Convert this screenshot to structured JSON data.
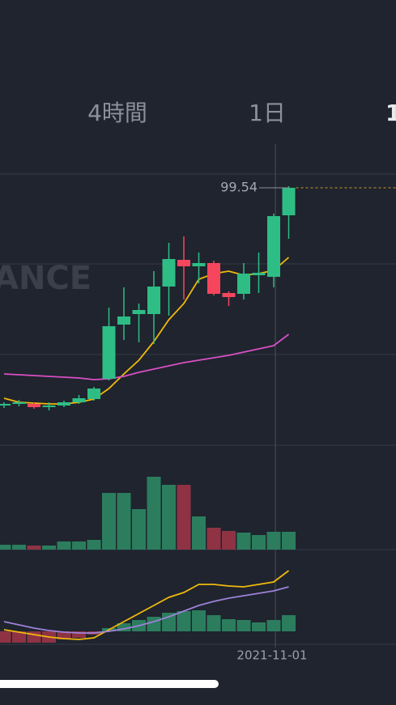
{
  "tabs": [
    "4時間",
    "1日",
    "1"
  ],
  "watermark": "ANCE",
  "chart_data": [
    {
      "type": "candlestick",
      "categories": [
        null,
        null,
        null,
        null,
        null,
        null,
        null,
        null,
        null,
        null,
        null,
        null,
        null,
        null,
        null,
        null,
        null,
        null,
        "2021-11-01",
        null
      ],
      "open": [
        72.64,
        72.84,
        72.84,
        72.44,
        72.64,
        73.04,
        73.44,
        75.94,
        82.64,
        83.94,
        83.94,
        87.34,
        90.64,
        89.84,
        90.24,
        86.54,
        86.44,
        88.74,
        88.54,
        96.14
      ],
      "high": [
        73.04,
        73.34,
        73.04,
        73.04,
        73.24,
        73.94,
        74.94,
        84.74,
        87.24,
        85.24,
        89.24,
        92.74,
        93.54,
        91.54,
        90.54,
        86.74,
        90.24,
        91.54,
        96.34,
        99.74
      ],
      "low": [
        72.34,
        72.54,
        72.24,
        72.04,
        72.44,
        72.84,
        73.24,
        75.74,
        80.74,
        80.44,
        80.24,
        83.74,
        85.74,
        87.74,
        86.24,
        84.94,
        85.74,
        86.54,
        87.24,
        93.24
      ],
      "close": [
        72.84,
        73.04,
        72.44,
        72.64,
        73.04,
        73.54,
        74.74,
        82.44,
        83.64,
        84.44,
        87.34,
        90.74,
        89.84,
        90.24,
        86.44,
        86.04,
        88.94,
        89.04,
        96.04,
        99.54
      ],
      "up_color": "#2ebd85",
      "down_color": "#f6465d",
      "series": [
        {
          "color": "#f0b90b",
          "values": [
            73.54,
            73.04,
            72.94,
            72.84,
            72.84,
            73.04,
            73.44,
            74.74,
            76.54,
            78.24,
            80.54,
            83.24,
            85.24,
            88.24,
            88.94,
            89.24,
            88.74,
            88.94,
            89.34,
            90.94
          ]
        },
        {
          "color": "#d94fc4",
          "values": [
            76.54,
            76.44,
            76.34,
            76.24,
            76.14,
            76.04,
            75.84,
            75.94,
            76.24,
            76.74,
            77.14,
            77.54,
            77.94,
            78.24,
            78.54,
            78.84,
            79.24,
            79.64,
            80.04,
            81.44
          ]
        }
      ],
      "last_price": 99.54,
      "ylim": [
        67.74,
        104.74
      ]
    },
    {
      "type": "bar",
      "values": [
        6,
        6,
        5,
        5,
        10,
        10,
        12,
        70,
        70,
        50,
        90,
        80,
        80,
        41,
        27,
        23,
        21,
        18,
        22,
        22
      ],
      "colors": [
        "#2b7d5e",
        "#2b7d5e",
        "#8f3344",
        "#2b7d5e",
        "#2b7d5e",
        "#2b7d5e",
        "#2b7d5e",
        "#2b7d5e",
        "#2b7d5e",
        "#2b7d5e",
        "#2b7d5e",
        "#2b7d5e",
        "#8f3344",
        "#2b7d5e",
        "#8f3344",
        "#8f3344",
        "#2b7d5e",
        "#2b7d5e",
        "#2b7d5e",
        "#2b7d5e"
      ],
      "ylim": [
        0,
        118
      ]
    },
    {
      "type": "macd",
      "values": [
        -1.4,
        -1.4,
        -1.4,
        -1.4,
        -1.0,
        -0.8,
        -0.4,
        0.4,
        1.0,
        1.4,
        1.8,
        2.3,
        2.5,
        2.6,
        2.0,
        1.5,
        1.4,
        1.1,
        1.4,
        2.0
      ],
      "up_color": "#2b7d5e",
      "down_color": "#8f3344",
      "series": [
        {
          "color": "#f0b90b",
          "values": [
            0.2,
            -0.1,
            -0.4,
            -0.7,
            -0.9,
            -1.0,
            -0.8,
            0.2,
            1.2,
            2.2,
            3.2,
            4.2,
            4.8,
            5.8,
            5.8,
            5.6,
            5.5,
            5.8,
            6.1,
            7.5
          ]
        },
        {
          "color": "#9d82d8",
          "values": [
            1.2,
            0.8,
            0.4,
            0.1,
            -0.1,
            -0.2,
            -0.2,
            0.0,
            0.3,
            0.7,
            1.2,
            1.8,
            2.5,
            3.2,
            3.7,
            4.1,
            4.4,
            4.7,
            5.0,
            5.5
          ]
        }
      ],
      "ylim": [
        -1.5,
        9.5
      ]
    }
  ]
}
